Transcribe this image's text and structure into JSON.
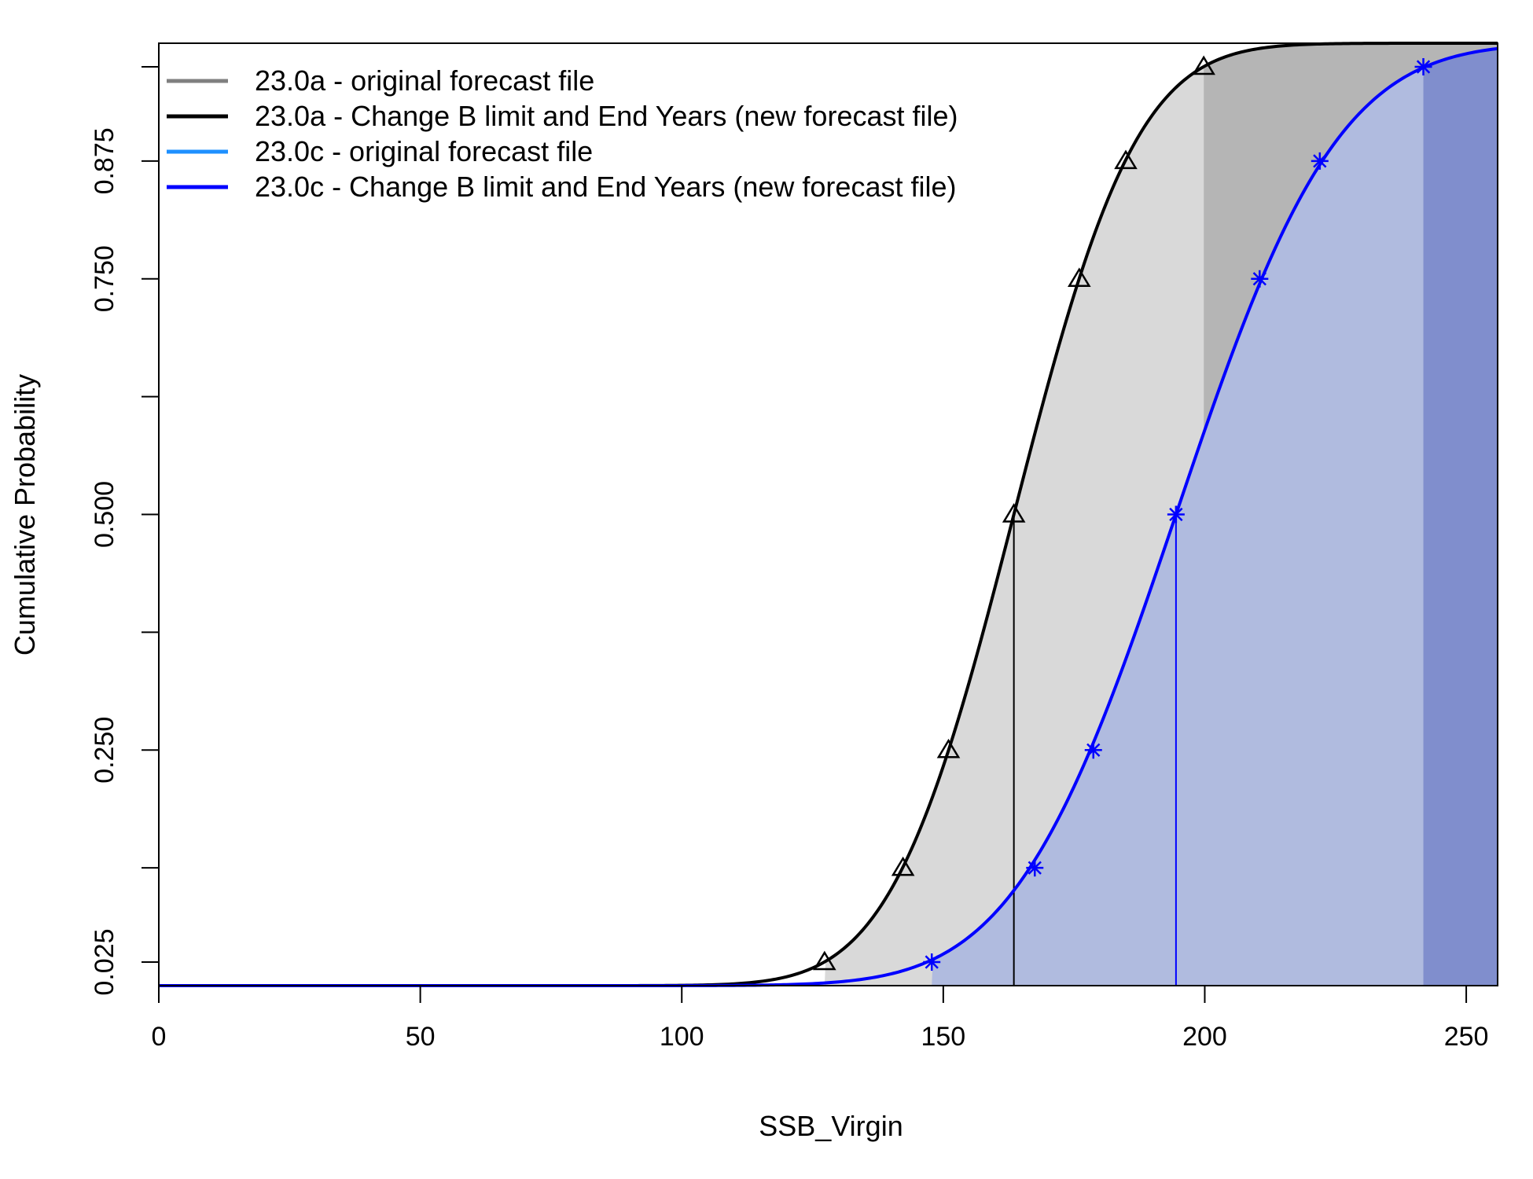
{
  "chart_data": {
    "type": "line",
    "title": "",
    "xlabel": "SSB_Virgin",
    "ylabel": "Cumulative Probability",
    "xlim": [
      0,
      256
    ],
    "ylim": [
      0,
      1
    ],
    "x_ticks": [
      0,
      50,
      100,
      150,
      200,
      250
    ],
    "x_tick_labels": [
      "0",
      "50",
      "100",
      "150",
      "200",
      "250"
    ],
    "y_ticks": [
      0.025,
      0.125,
      0.25,
      0.375,
      0.5,
      0.625,
      0.75,
      0.875,
      0.975
    ],
    "y_tick_labels": [
      "0.025",
      "",
      "0.250",
      "",
      "0.500",
      "",
      "0.750",
      "0.875",
      ""
    ],
    "grid": false,
    "legend_position": "top-left",
    "legend": [
      {
        "label": "23.0a - original forecast file",
        "color": "#808080"
      },
      {
        "label": "23.0a - Change B limit and End Years (new forecast file)",
        "color": "#000000"
      },
      {
        "label": "23.0c - original forecast file",
        "color": "#1e90ff"
      },
      {
        "label": "23.0c - Change B limit and End Years (new forecast file)",
        "color": "#0000ff"
      }
    ],
    "series": [
      {
        "name": "23.0a - Change B limit and End Years (new forecast file)",
        "color": "#000000",
        "marker": "triangle",
        "distribution": {
          "type": "normal",
          "mean": 163.5,
          "sd": 18.5
        },
        "points": [
          {
            "x": 127.3,
            "y": 0.025
          },
          {
            "x": 142.3,
            "y": 0.125
          },
          {
            "x": 151.0,
            "y": 0.25
          },
          {
            "x": 163.5,
            "y": 0.5
          },
          {
            "x": 176.0,
            "y": 0.75
          },
          {
            "x": 184.9,
            "y": 0.875
          },
          {
            "x": 199.8,
            "y": 0.975
          }
        ],
        "median": 163.5,
        "shade_bounds": [
          127.3,
          199.8
        ],
        "fill_light": "#d9d9d9",
        "fill_dark": "#b5b5b5"
      },
      {
        "name": "23.0c - Change B limit and End Years (new forecast file)",
        "color": "#0000ff",
        "marker": "asterisk",
        "distribution": {
          "type": "normal",
          "mean": 194.5,
          "sd": 24.3
        },
        "points": [
          {
            "x": 147.8,
            "y": 0.025
          },
          {
            "x": 167.5,
            "y": 0.125
          },
          {
            "x": 178.7,
            "y": 0.25
          },
          {
            "x": 194.5,
            "y": 0.5
          },
          {
            "x": 210.5,
            "y": 0.75
          },
          {
            "x": 222.0,
            "y": 0.875
          },
          {
            "x": 241.8,
            "y": 0.975
          }
        ],
        "median": 194.5,
        "shade_bounds": [
          147.8,
          241.8
        ],
        "fill_light": "#b0bbdf",
        "fill_dark": "#808ecd"
      }
    ]
  }
}
